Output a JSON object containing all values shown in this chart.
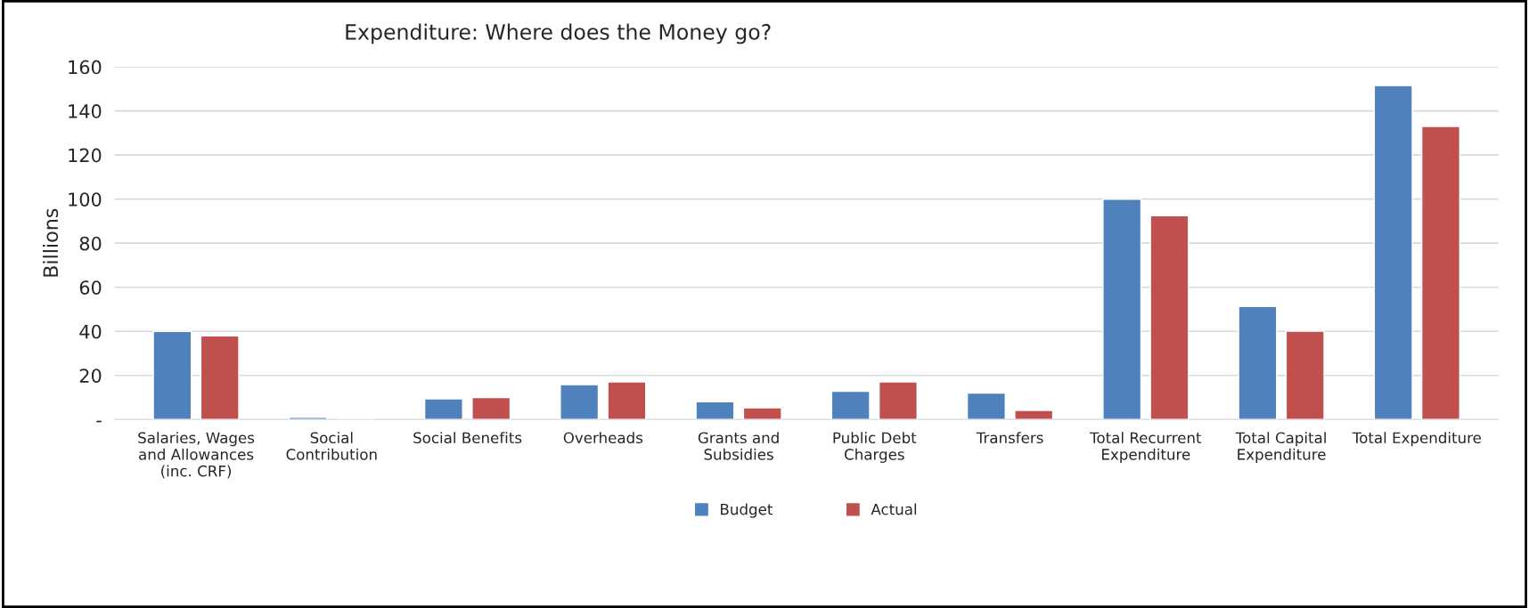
{
  "chart_data": {
    "type": "bar",
    "title": "Expenditure: Where does the Money go?",
    "ylabel": "Billions",
    "categories": [
      "Salaries, Wages\nand Allowances\n(inc. CRF)",
      "Social\nContribution",
      "Social Benefits",
      "Overheads",
      "Grants and\nSubsidies",
      "Public Debt\nCharges",
      "Transfers",
      "Total Recurrent\nExpenditure",
      "Total Capital\nExpenditure",
      "Total Expenditure"
    ],
    "series": [
      {
        "name": "Budget",
        "color": "#4f81bd",
        "values": [
          40,
          1,
          9.4,
          15.8,
          8.1,
          12.8,
          12,
          100,
          51.3,
          151.5
        ]
      },
      {
        "name": "Actual",
        "color": "#c0504d",
        "values": [
          38,
          null,
          10,
          17.1,
          5.3,
          17.1,
          4.1,
          92.5,
          40.1,
          133
        ]
      }
    ],
    "ylim": [
      0,
      160
    ],
    "yticks": [
      {
        "value": 0,
        "label": "-"
      },
      20,
      40,
      60,
      80,
      100,
      120,
      140,
      160
    ],
    "grid": "y",
    "legend": "bottom"
  }
}
